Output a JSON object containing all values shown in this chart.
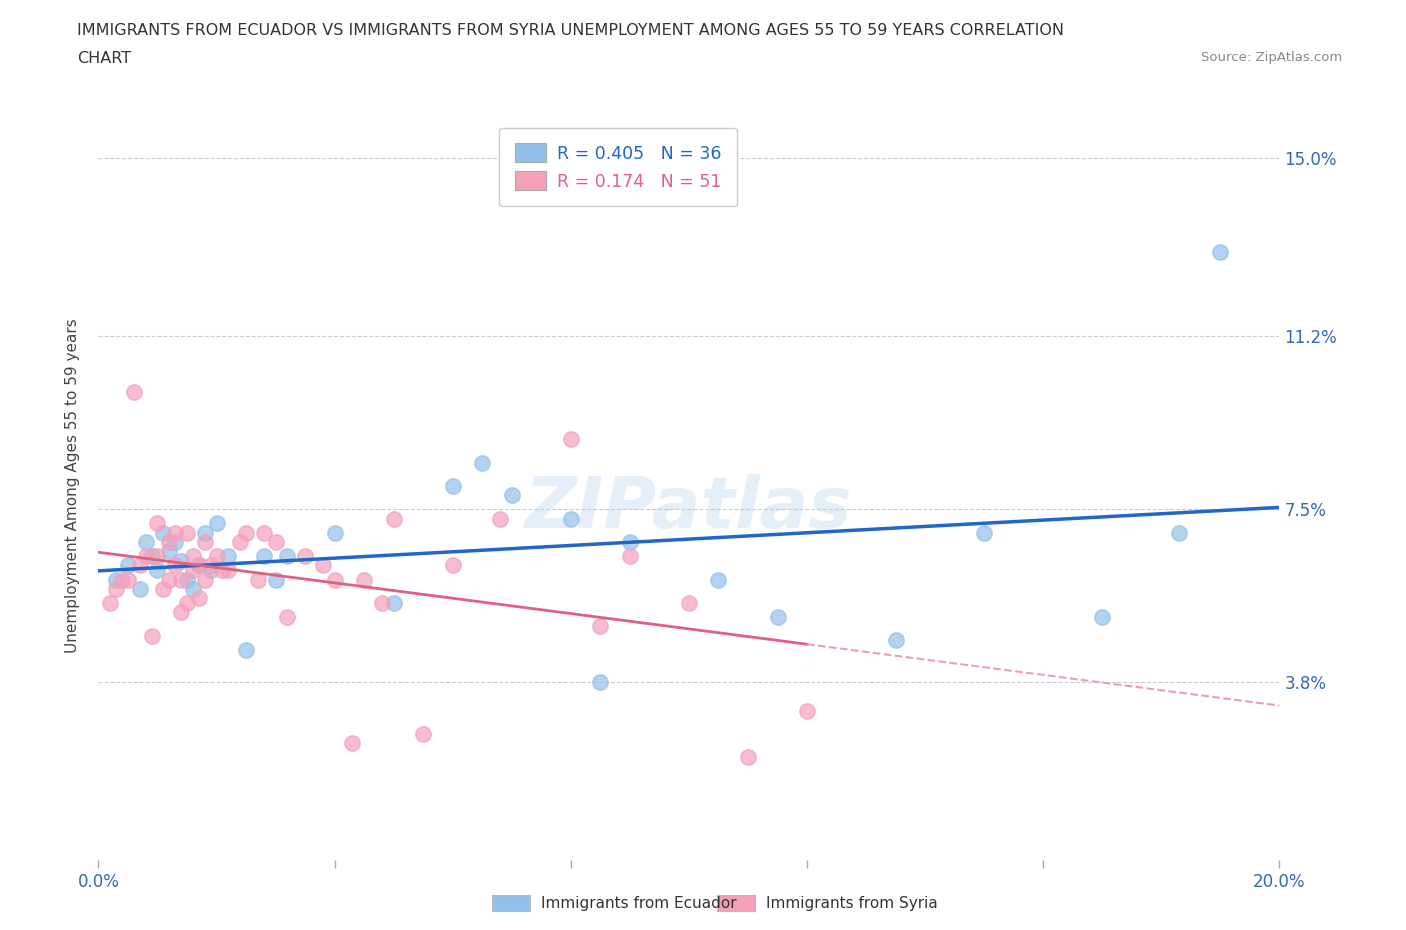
{
  "title_line1": "IMMIGRANTS FROM ECUADOR VS IMMIGRANTS FROM SYRIA UNEMPLOYMENT AMONG AGES 55 TO 59 YEARS CORRELATION",
  "title_line2": "CHART",
  "source_text": "Source: ZipAtlas.com",
  "ylabel": "Unemployment Among Ages 55 to 59 years",
  "xlim": [
    0.0,
    0.2
  ],
  "ylim": [
    0.0,
    0.16
  ],
  "xticks": [
    0.0,
    0.04,
    0.08,
    0.12,
    0.16,
    0.2
  ],
  "xticklabels": [
    "0.0%",
    "",
    "",
    "",
    "",
    "20.0%"
  ],
  "yticks": [
    0.038,
    0.075,
    0.112,
    0.15
  ],
  "yticklabels": [
    "3.8%",
    "7.5%",
    "11.2%",
    "15.0%"
  ],
  "ecuador_color": "#92C0EA",
  "syria_color": "#F4A0B8",
  "ecuador_line_color": "#2166C8",
  "syria_line_color": "#E06080",
  "syria_dash_color": "#E8A0B0",
  "legend_ecuador_label": "Immigrants from Ecuador",
  "legend_syria_label": "Immigrants from Syria",
  "R_ecuador": 0.405,
  "N_ecuador": 36,
  "R_syria": 0.174,
  "N_syria": 51,
  "ecuador_scatter_x": [
    0.003,
    0.005,
    0.007,
    0.008,
    0.009,
    0.01,
    0.011,
    0.012,
    0.013,
    0.014,
    0.015,
    0.016,
    0.017,
    0.018,
    0.019,
    0.02,
    0.022,
    0.025,
    0.028,
    0.03,
    0.032,
    0.04,
    0.05,
    0.06,
    0.065,
    0.07,
    0.08,
    0.085,
    0.09,
    0.105,
    0.115,
    0.135,
    0.15,
    0.17,
    0.183,
    0.19
  ],
  "ecuador_scatter_y": [
    0.06,
    0.063,
    0.058,
    0.068,
    0.065,
    0.062,
    0.07,
    0.066,
    0.068,
    0.064,
    0.06,
    0.058,
    0.063,
    0.07,
    0.062,
    0.072,
    0.065,
    0.045,
    0.065,
    0.06,
    0.065,
    0.07,
    0.055,
    0.08,
    0.085,
    0.078,
    0.073,
    0.038,
    0.068,
    0.06,
    0.052,
    0.047,
    0.07,
    0.052,
    0.07,
    0.13
  ],
  "syria_scatter_x": [
    0.002,
    0.003,
    0.004,
    0.005,
    0.006,
    0.007,
    0.008,
    0.009,
    0.01,
    0.01,
    0.011,
    0.012,
    0.012,
    0.013,
    0.013,
    0.014,
    0.014,
    0.015,
    0.015,
    0.016,
    0.016,
    0.017,
    0.017,
    0.018,
    0.018,
    0.019,
    0.02,
    0.021,
    0.022,
    0.024,
    0.025,
    0.027,
    0.028,
    0.03,
    0.032,
    0.035,
    0.038,
    0.04,
    0.043,
    0.045,
    0.048,
    0.05,
    0.055,
    0.06,
    0.068,
    0.08,
    0.085,
    0.09,
    0.1,
    0.11,
    0.12
  ],
  "syria_scatter_y": [
    0.055,
    0.058,
    0.06,
    0.06,
    0.1,
    0.063,
    0.065,
    0.048,
    0.072,
    0.065,
    0.058,
    0.068,
    0.06,
    0.063,
    0.07,
    0.053,
    0.06,
    0.055,
    0.07,
    0.062,
    0.065,
    0.056,
    0.063,
    0.06,
    0.068,
    0.063,
    0.065,
    0.062,
    0.062,
    0.068,
    0.07,
    0.06,
    0.07,
    0.068,
    0.052,
    0.065,
    0.063,
    0.06,
    0.025,
    0.06,
    0.055,
    0.073,
    0.027,
    0.063,
    0.073,
    0.09,
    0.05,
    0.065,
    0.055,
    0.022,
    0.032
  ],
  "watermark_text": "ZIPatlas",
  "background_color": "#FFFFFF",
  "grid_color": "#CCCCCC",
  "grid_style": "--"
}
